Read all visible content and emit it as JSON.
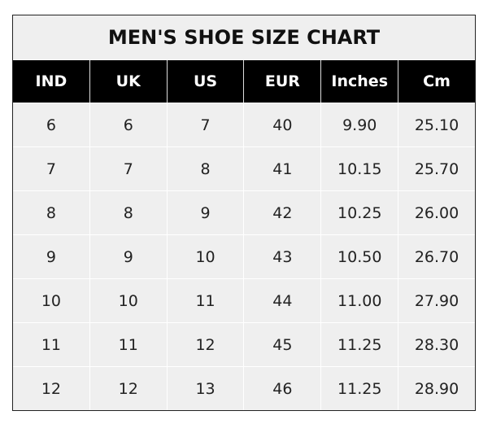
{
  "title": "MEN'S SHOE SIZE CHART",
  "headers": [
    "IND",
    "UK",
    "US",
    "EUR",
    "Inches",
    "Cm"
  ],
  "rows": [
    [
      "6",
      "6",
      "7",
      "40",
      "9.90",
      "25.10"
    ],
    [
      "7",
      "7",
      "8",
      "41",
      "10.15",
      "25.70"
    ],
    [
      "8",
      "8",
      "9",
      "42",
      "10.25",
      "26.00"
    ],
    [
      "9",
      "9",
      "10",
      "43",
      "10.50",
      "26.70"
    ],
    [
      "10",
      "10",
      "11",
      "44",
      "11.00",
      "27.90"
    ],
    [
      "11",
      "11",
      "12",
      "45",
      "11.25",
      "28.30"
    ],
    [
      "12",
      "12",
      "13",
      "46",
      "11.25",
      "28.90"
    ]
  ]
}
